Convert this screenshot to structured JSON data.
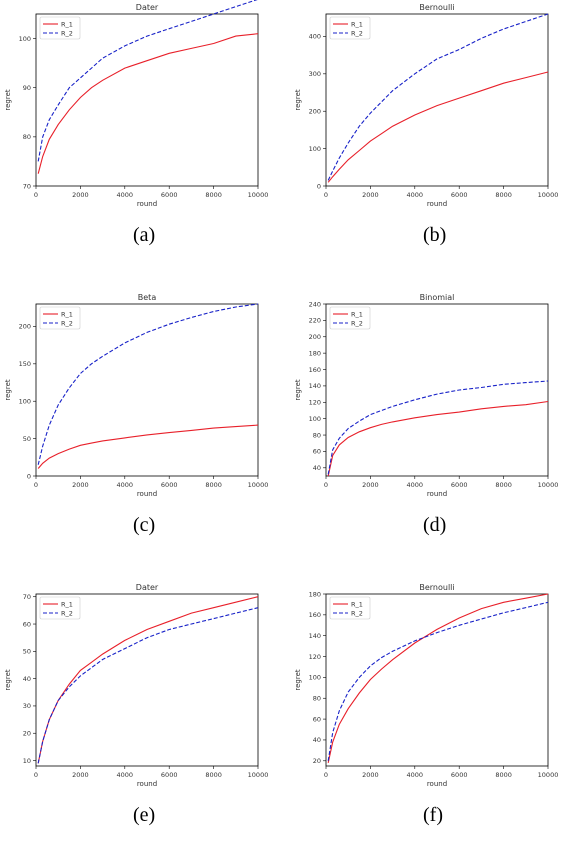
{
  "colors": {
    "r1": "#e8202a",
    "r2": "#1822c8",
    "frame": "#000000"
  },
  "chart_data": [
    {
      "type": "line",
      "title": "Dater",
      "xlabel": "round",
      "ylabel": "regret",
      "xlim": [
        0,
        10000
      ],
      "ylim": [
        70,
        105
      ],
      "xticks": [
        0,
        2000,
        4000,
        6000,
        8000,
        10000
      ],
      "xtick_labels": [
        "0",
        "2000",
        "4000",
        "6000",
        "8000",
        "10000"
      ],
      "yticks": [
        70,
        80,
        90,
        100
      ],
      "legend": "top-left",
      "grid": false,
      "sub_label": "(a)",
      "series": [
        {
          "name": "R_1",
          "x": [
            100,
            300,
            600,
            1000,
            1500,
            2000,
            2500,
            3000,
            4000,
            5000,
            6000,
            7000,
            8000,
            9000,
            10000
          ],
          "y": [
            72.5,
            76,
            79.5,
            82.5,
            85.5,
            88,
            90,
            91.5,
            94,
            95.5,
            97,
            98,
            99,
            100.5,
            101
          ]
        },
        {
          "name": "R_2",
          "x": [
            100,
            300,
            600,
            1000,
            1500,
            2000,
            2500,
            3000,
            4000,
            5000,
            6000,
            7000,
            8000,
            9000,
            10000
          ],
          "y": [
            75,
            80,
            83.5,
            86.5,
            90,
            92,
            94,
            96,
            98.5,
            100.5,
            102,
            103.5,
            105,
            106.5,
            108
          ]
        }
      ]
    },
    {
      "type": "line",
      "title": "Bernoulli",
      "xlabel": "round",
      "ylabel": "regret",
      "xlim": [
        0,
        10000
      ],
      "ylim": [
        0,
        460
      ],
      "xticks": [
        0,
        2000,
        4000,
        6000,
        8000,
        10000
      ],
      "xtick_labels": [
        "0",
        "2000",
        "4000",
        "6000",
        "8000",
        "10000"
      ],
      "yticks": [
        0,
        100,
        200,
        300,
        400
      ],
      "legend": "top-left",
      "grid": false,
      "sub_label": "(b)",
      "series": [
        {
          "name": "R_1",
          "x": [
            100,
            300,
            600,
            1000,
            1500,
            2000,
            2500,
            3000,
            4000,
            5000,
            6000,
            7000,
            8000,
            9000,
            10000
          ],
          "y": [
            10,
            25,
            45,
            70,
            95,
            120,
            140,
            160,
            190,
            215,
            235,
            255,
            275,
            290,
            305
          ]
        },
        {
          "name": "R_2",
          "x": [
            100,
            300,
            600,
            1000,
            1500,
            2000,
            2500,
            3000,
            4000,
            5000,
            6000,
            7000,
            8000,
            9000,
            10000
          ],
          "y": [
            15,
            40,
            75,
            115,
            160,
            195,
            225,
            255,
            300,
            340,
            365,
            395,
            420,
            440,
            460
          ]
        }
      ]
    },
    {
      "type": "line",
      "title": "Beta",
      "xlabel": "round",
      "ylabel": "regret",
      "xlim": [
        0,
        10000
      ],
      "ylim": [
        0,
        230
      ],
      "xticks": [
        0,
        2000,
        4000,
        6000,
        8000,
        10000
      ],
      "xtick_labels": [
        "0",
        "2000",
        "4000",
        "6000",
        "8000",
        "10000"
      ],
      "yticks": [
        0,
        50,
        100,
        150,
        200
      ],
      "legend": "top-left",
      "grid": false,
      "sub_label": "(c)",
      "series": [
        {
          "name": "R_1",
          "x": [
            100,
            300,
            600,
            1000,
            1500,
            2000,
            2500,
            3000,
            4000,
            5000,
            6000,
            7000,
            8000,
            9000,
            10000
          ],
          "y": [
            10,
            17,
            24,
            30,
            36,
            41,
            44,
            47,
            51,
            55,
            58,
            61,
            64,
            66,
            68
          ]
        },
        {
          "name": "R_2",
          "x": [
            100,
            300,
            600,
            1000,
            1500,
            2000,
            2500,
            3000,
            4000,
            5000,
            6000,
            7000,
            8000,
            9000,
            10000
          ],
          "y": [
            15,
            40,
            68,
            95,
            118,
            137,
            150,
            160,
            178,
            192,
            203,
            212,
            220,
            226,
            230
          ]
        }
      ]
    },
    {
      "type": "line",
      "title": "Binomial",
      "xlabel": "round",
      "ylabel": "regret",
      "xlim": [
        0,
        10000
      ],
      "ylim": [
        30,
        240
      ],
      "xticks": [
        0,
        2000,
        4000,
        6000,
        8000,
        10000
      ],
      "xtick_labels": [
        "0",
        "2000",
        "4000",
        "6000",
        "8000",
        "10000"
      ],
      "yticks": [
        40,
        60,
        80,
        100,
        120,
        140,
        160,
        180,
        200,
        220,
        240
      ],
      "legend": "top-left",
      "grid": false,
      "sub_label": "(d)",
      "series": [
        {
          "name": "R_1",
          "x": [
            100,
            300,
            600,
            1000,
            1500,
            2000,
            2500,
            3000,
            4000,
            5000,
            6000,
            7000,
            8000,
            9000,
            10000
          ],
          "y": [
            30,
            55,
            68,
            77,
            84,
            89,
            93,
            96,
            101,
            105,
            108,
            112,
            115,
            117,
            121
          ]
        },
        {
          "name": "R_2",
          "x": [
            100,
            300,
            600,
            1000,
            1500,
            2000,
            2500,
            3000,
            4000,
            5000,
            6000,
            7000,
            8000,
            9000,
            10000
          ],
          "y": [
            32,
            62,
            76,
            88,
            97,
            105,
            110,
            115,
            123,
            130,
            135,
            138,
            142,
            144,
            146
          ]
        }
      ]
    },
    {
      "type": "line",
      "title": "Dater",
      "xlabel": "round",
      "ylabel": "regret",
      "xlim": [
        0,
        10000
      ],
      "ylim": [
        8,
        71
      ],
      "xticks": [
        0,
        2000,
        4000,
        6000,
        8000,
        10000
      ],
      "xtick_labels": [
        "0",
        "2000",
        "4000",
        "6000",
        "8000",
        "10000"
      ],
      "yticks": [
        10,
        20,
        30,
        40,
        50,
        60,
        70
      ],
      "legend": "top-left",
      "grid": false,
      "sub_label": "(e)",
      "series": [
        {
          "name": "R_1",
          "x": [
            100,
            300,
            600,
            1000,
            1500,
            2000,
            2500,
            3000,
            4000,
            5000,
            6000,
            7000,
            8000,
            9000,
            10000
          ],
          "y": [
            9,
            17,
            25,
            32,
            38,
            43,
            46,
            49,
            54,
            58,
            61,
            64,
            66,
            68,
            70
          ]
        },
        {
          "name": "R_2",
          "x": [
            100,
            300,
            600,
            1000,
            1500,
            2000,
            2500,
            3000,
            4000,
            5000,
            6000,
            7000,
            8000,
            9000,
            10000
          ],
          "y": [
            9,
            17,
            25,
            32,
            37,
            41,
            44,
            47,
            51,
            55,
            58,
            60,
            62,
            64,
            66
          ]
        }
      ]
    },
    {
      "type": "line",
      "title": "Bernoulli",
      "xlabel": "round",
      "ylabel": "regret",
      "xlim": [
        0,
        10000
      ],
      "ylim": [
        15,
        180
      ],
      "xticks": [
        0,
        2000,
        4000,
        6000,
        8000,
        10000
      ],
      "xtick_labels": [
        "0",
        "2000",
        "4000",
        "6000",
        "8000",
        "10000"
      ],
      "yticks": [
        20,
        40,
        60,
        80,
        100,
        120,
        140,
        160,
        180
      ],
      "legend": "top-left",
      "grid": false,
      "sub_label": "(f)",
      "series": [
        {
          "name": "R_1",
          "x": [
            100,
            300,
            600,
            1000,
            1500,
            2000,
            2500,
            3000,
            4000,
            5000,
            6000,
            7000,
            8000,
            9000,
            10000
          ],
          "y": [
            18,
            38,
            55,
            70,
            85,
            98,
            108,
            117,
            133,
            146,
            157,
            166,
            172,
            176,
            180
          ]
        },
        {
          "name": "R_2",
          "x": [
            100,
            300,
            600,
            1000,
            1500,
            2000,
            2500,
            3000,
            4000,
            5000,
            6000,
            7000,
            8000,
            9000,
            10000
          ],
          "y": [
            20,
            47,
            68,
            86,
            100,
            111,
            119,
            125,
            135,
            143,
            150,
            156,
            162,
            167,
            172
          ]
        }
      ]
    }
  ]
}
